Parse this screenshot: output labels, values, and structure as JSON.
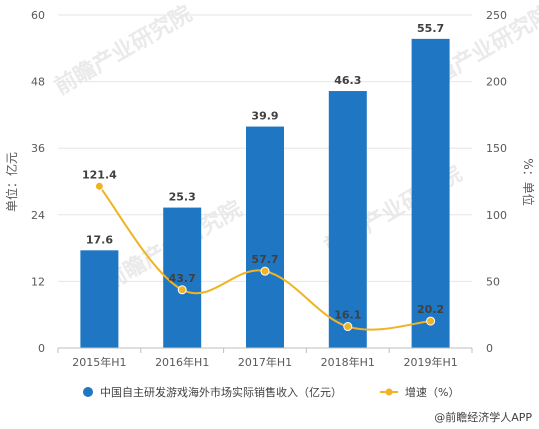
{
  "chart_data": {
    "type": "bar",
    "categories": [
      "2015年H1",
      "2016年H1",
      "2017年H1",
      "2018年H1",
      "2019年H1"
    ],
    "series": [
      {
        "name": "中国自主研发游戏海外市场实际销售收入（亿元）",
        "type": "bar",
        "axis": "left",
        "values": [
          17.6,
          25.3,
          39.9,
          46.3,
          55.7
        ],
        "color": "#1f77c4"
      },
      {
        "name": "增速（%）",
        "type": "line",
        "smooth": true,
        "axis": "right",
        "values": [
          121.4,
          43.7,
          57.7,
          16.1,
          20.2
        ],
        "color": "#f0b323"
      }
    ],
    "ylabel": "单位：亿元",
    "y2label": "%：单位",
    "ylim": [
      0,
      60
    ],
    "yticks": [
      0,
      12,
      24,
      36,
      48,
      60
    ],
    "y2lim": [
      0,
      250
    ],
    "y2ticks": [
      0,
      50,
      100,
      150,
      200,
      250
    ],
    "grid": true,
    "legend_position": "bottom"
  },
  "watermark": "前瞻产业研究院",
  "credit": "@前瞻经济学人APP"
}
